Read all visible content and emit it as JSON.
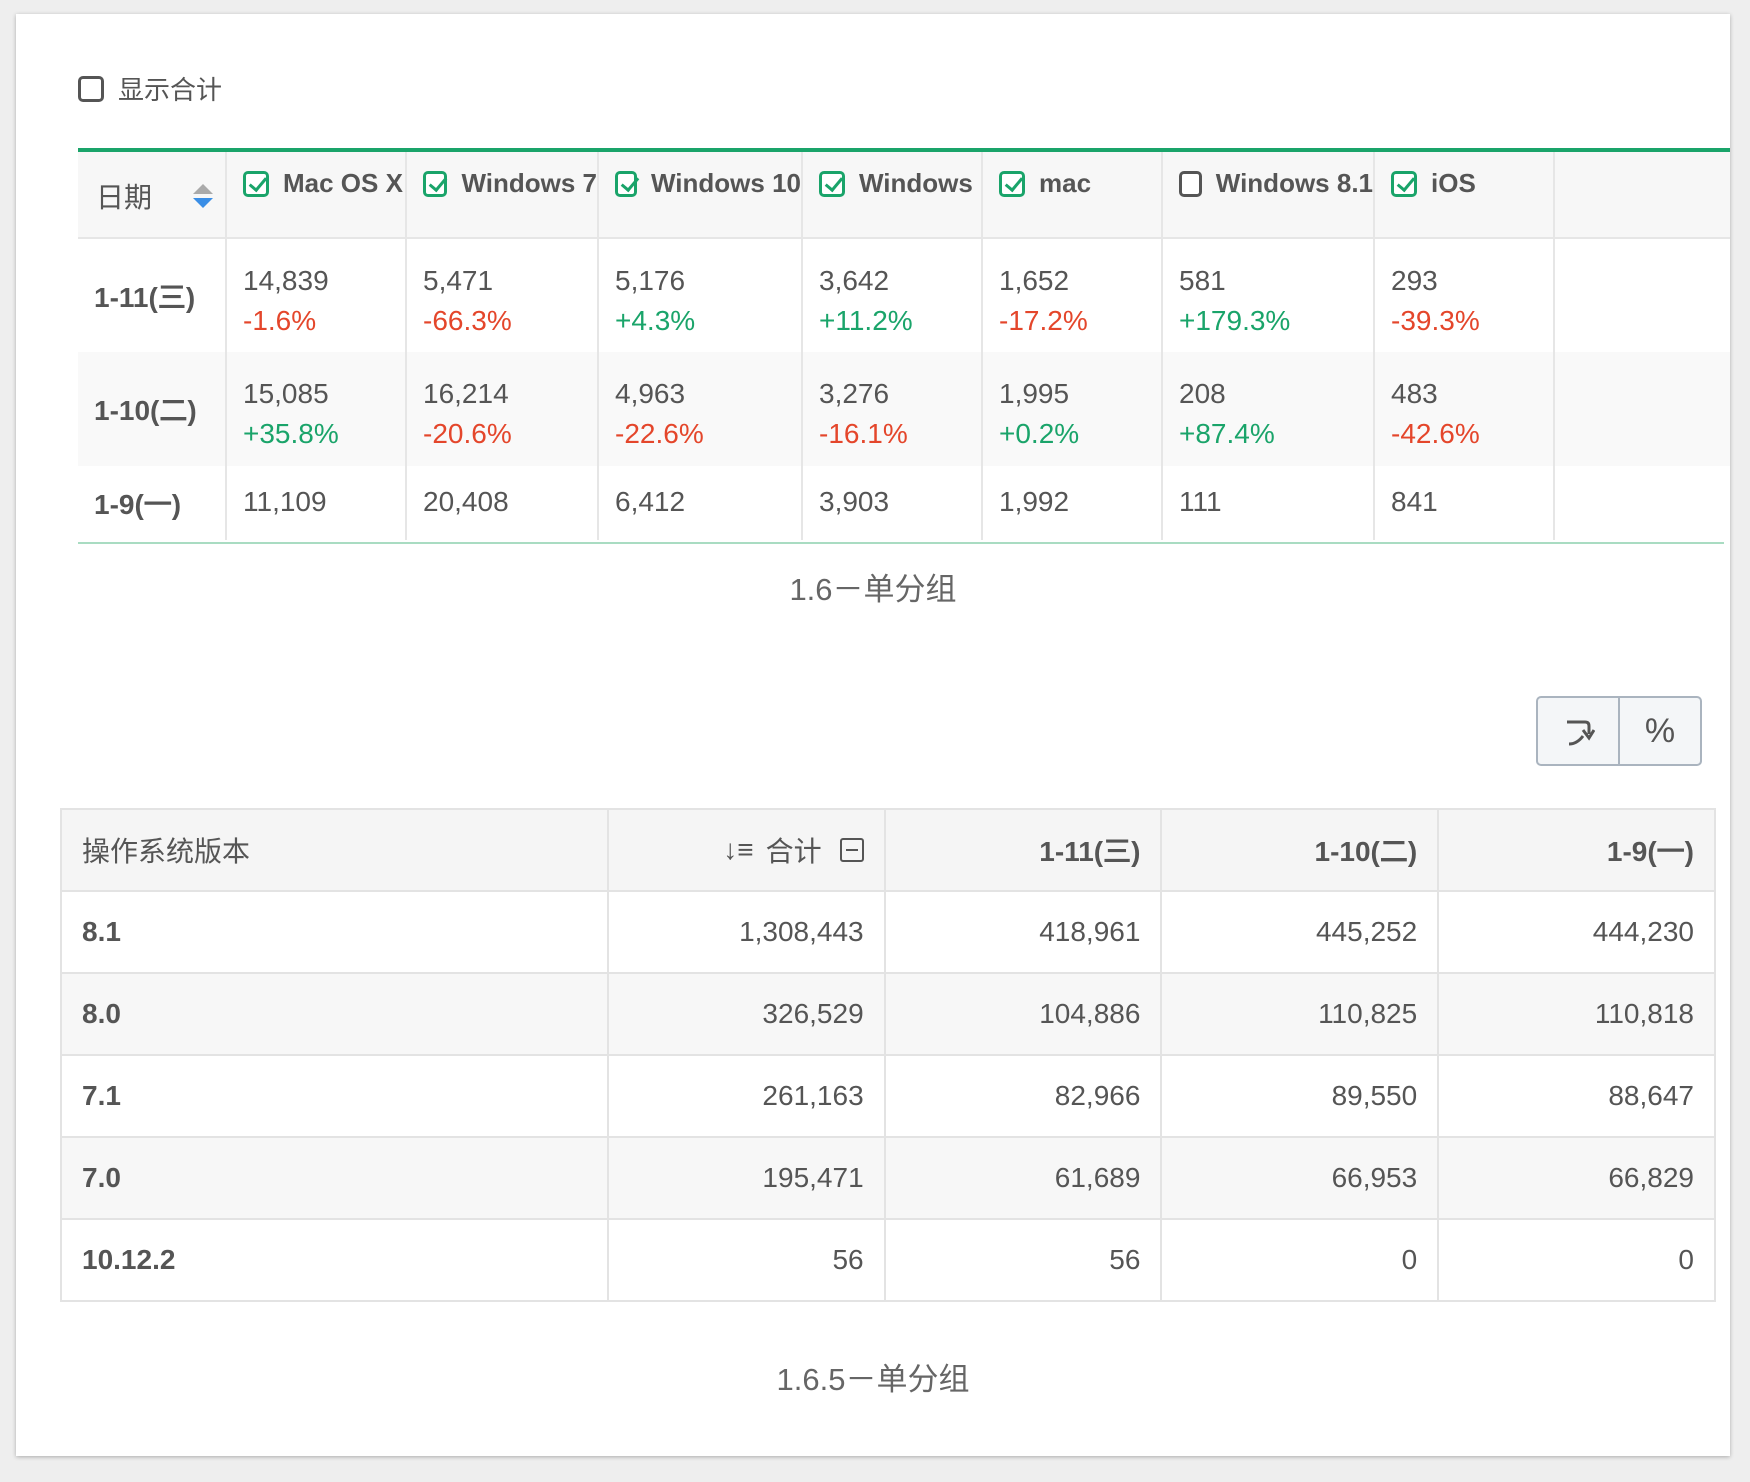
{
  "show_total": {
    "label": "显示合计",
    "checked": false
  },
  "table1": {
    "date_header": "日期",
    "columns": [
      {
        "label": "Mac OS X",
        "checked": true
      },
      {
        "label": "Windows 7",
        "checked": true
      },
      {
        "label": "Windows 10",
        "checked": true
      },
      {
        "label": "Windows",
        "checked": true
      },
      {
        "label": "mac",
        "checked": true
      },
      {
        "label": "Windows 8.1",
        "checked": false
      },
      {
        "label": "iOS",
        "checked": true
      }
    ],
    "rows": [
      {
        "date": "1-11(三)",
        "cells": [
          {
            "value": "14,839",
            "change": "-1.6%"
          },
          {
            "value": "5,471",
            "change": "-66.3%"
          },
          {
            "value": "5,176",
            "change": "+4.3%"
          },
          {
            "value": "3,642",
            "change": "+11.2%"
          },
          {
            "value": "1,652",
            "change": "-17.2%"
          },
          {
            "value": "581",
            "change": "+179.3%"
          },
          {
            "value": "293",
            "change": "-39.3%"
          }
        ]
      },
      {
        "date": "1-10(二)",
        "cells": [
          {
            "value": "15,085",
            "change": "+35.8%"
          },
          {
            "value": "16,214",
            "change": "-20.6%"
          },
          {
            "value": "4,963",
            "change": "-22.6%"
          },
          {
            "value": "3,276",
            "change": "-16.1%"
          },
          {
            "value": "1,995",
            "change": "+0.2%"
          },
          {
            "value": "208",
            "change": "+87.4%"
          },
          {
            "value": "483",
            "change": "-42.6%"
          }
        ]
      },
      {
        "date": "1-9(一)",
        "cells": [
          {
            "value": "11,109"
          },
          {
            "value": "20,408"
          },
          {
            "value": "6,412"
          },
          {
            "value": "3,903"
          },
          {
            "value": "1,992"
          },
          {
            "value": "111"
          },
          {
            "value": "841"
          }
        ]
      }
    ],
    "caption": "1.6－单分组"
  },
  "toggles": {
    "pivot_icon": "pivot-icon",
    "percent_label": "%"
  },
  "table2": {
    "headers": {
      "version": "操作系统版本",
      "total": "合计",
      "d1": "1-11(三)",
      "d2": "1-10(二)",
      "d3": "1-9(一)"
    },
    "rows": [
      {
        "version": "8.1",
        "total": "1,308,443",
        "d1": "418,961",
        "d2": "445,252",
        "d3": "444,230"
      },
      {
        "version": "8.0",
        "total": "326,529",
        "d1": "104,886",
        "d2": "110,825",
        "d3": "110,818"
      },
      {
        "version": "7.1",
        "total": "261,163",
        "d1": "82,966",
        "d2": "89,550",
        "d3": "88,647"
      },
      {
        "version": "7.0",
        "total": "195,471",
        "d1": "61,689",
        "d2": "66,953",
        "d3": "66,829"
      },
      {
        "version": "10.12.2",
        "total": "56",
        "d1": "56",
        "d2": "0",
        "d3": "0"
      }
    ],
    "caption": "1.6.5－单分组"
  },
  "colors": {
    "accent": "#1aa46a",
    "negative": "#e4462b",
    "positive": "#1aa46a",
    "sort_active": "#3a8ee6"
  }
}
